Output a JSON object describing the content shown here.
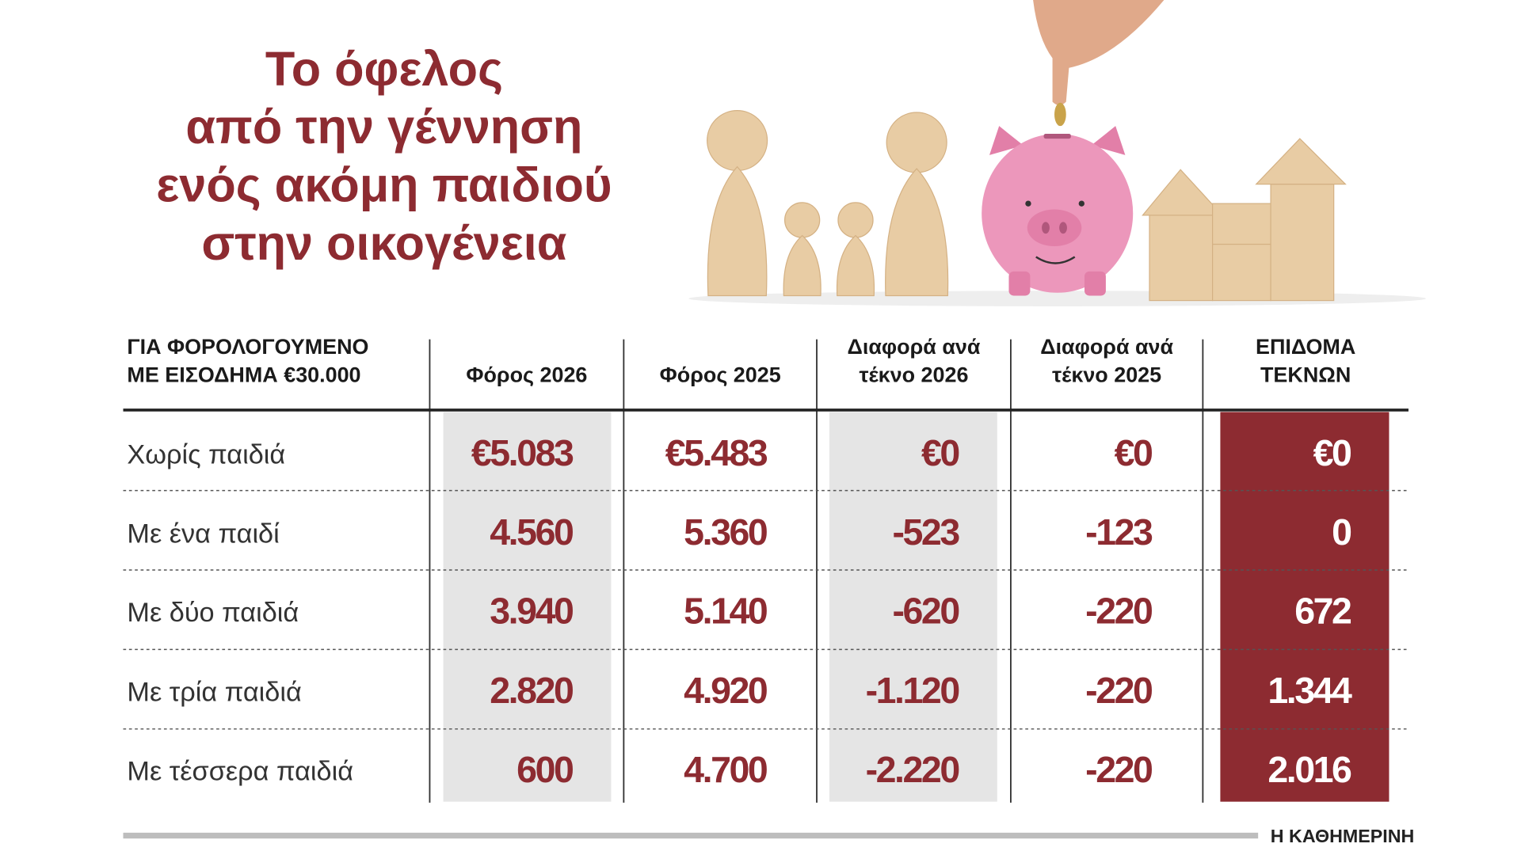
{
  "title": {
    "lines": [
      "Το όφελος",
      "από την γέννηση",
      "ενός ακόμη παιδιού",
      "στην οικογένεια"
    ]
  },
  "table": {
    "header": [
      [
        "ΓΙΑ ΦΟΡΟΛΟΓΟΥΜΕΝΟ",
        "ΜΕ ΕΙΣΟΔΗΜΑ €30.000"
      ],
      [
        "Φόρος 2026"
      ],
      [
        "Φόρος 2025"
      ],
      [
        "Διαφορά ανά",
        "τέκνο 2026"
      ],
      [
        "Διαφορά ανά",
        "τέκνο 2025"
      ],
      [
        "ΕΠΙΔΟΜΑ",
        "ΤΕΚΝΩΝ"
      ]
    ],
    "rows": [
      [
        "Χωρίς παιδιά",
        "€5.083",
        "€5.483",
        "€0",
        "€0",
        "€0"
      ],
      [
        "Με ένα παιδί",
        "4.560",
        "5.360",
        "-523",
        "-123",
        "0"
      ],
      [
        "Με δύο παιδιά",
        "3.940",
        "5.140",
        "-620",
        "-220",
        "672"
      ],
      [
        "Με τρία παιδιά",
        "2.820",
        "4.920",
        "-1.120",
        "-220",
        "1.344"
      ],
      [
        "Με τέσσερα παιδιά",
        "600",
        "4.700",
        "-2.220",
        "-220",
        "2.016"
      ]
    ]
  },
  "footer": {
    "source": "Η ΚΑΘΗΜΕΡΙΝΗ"
  }
}
